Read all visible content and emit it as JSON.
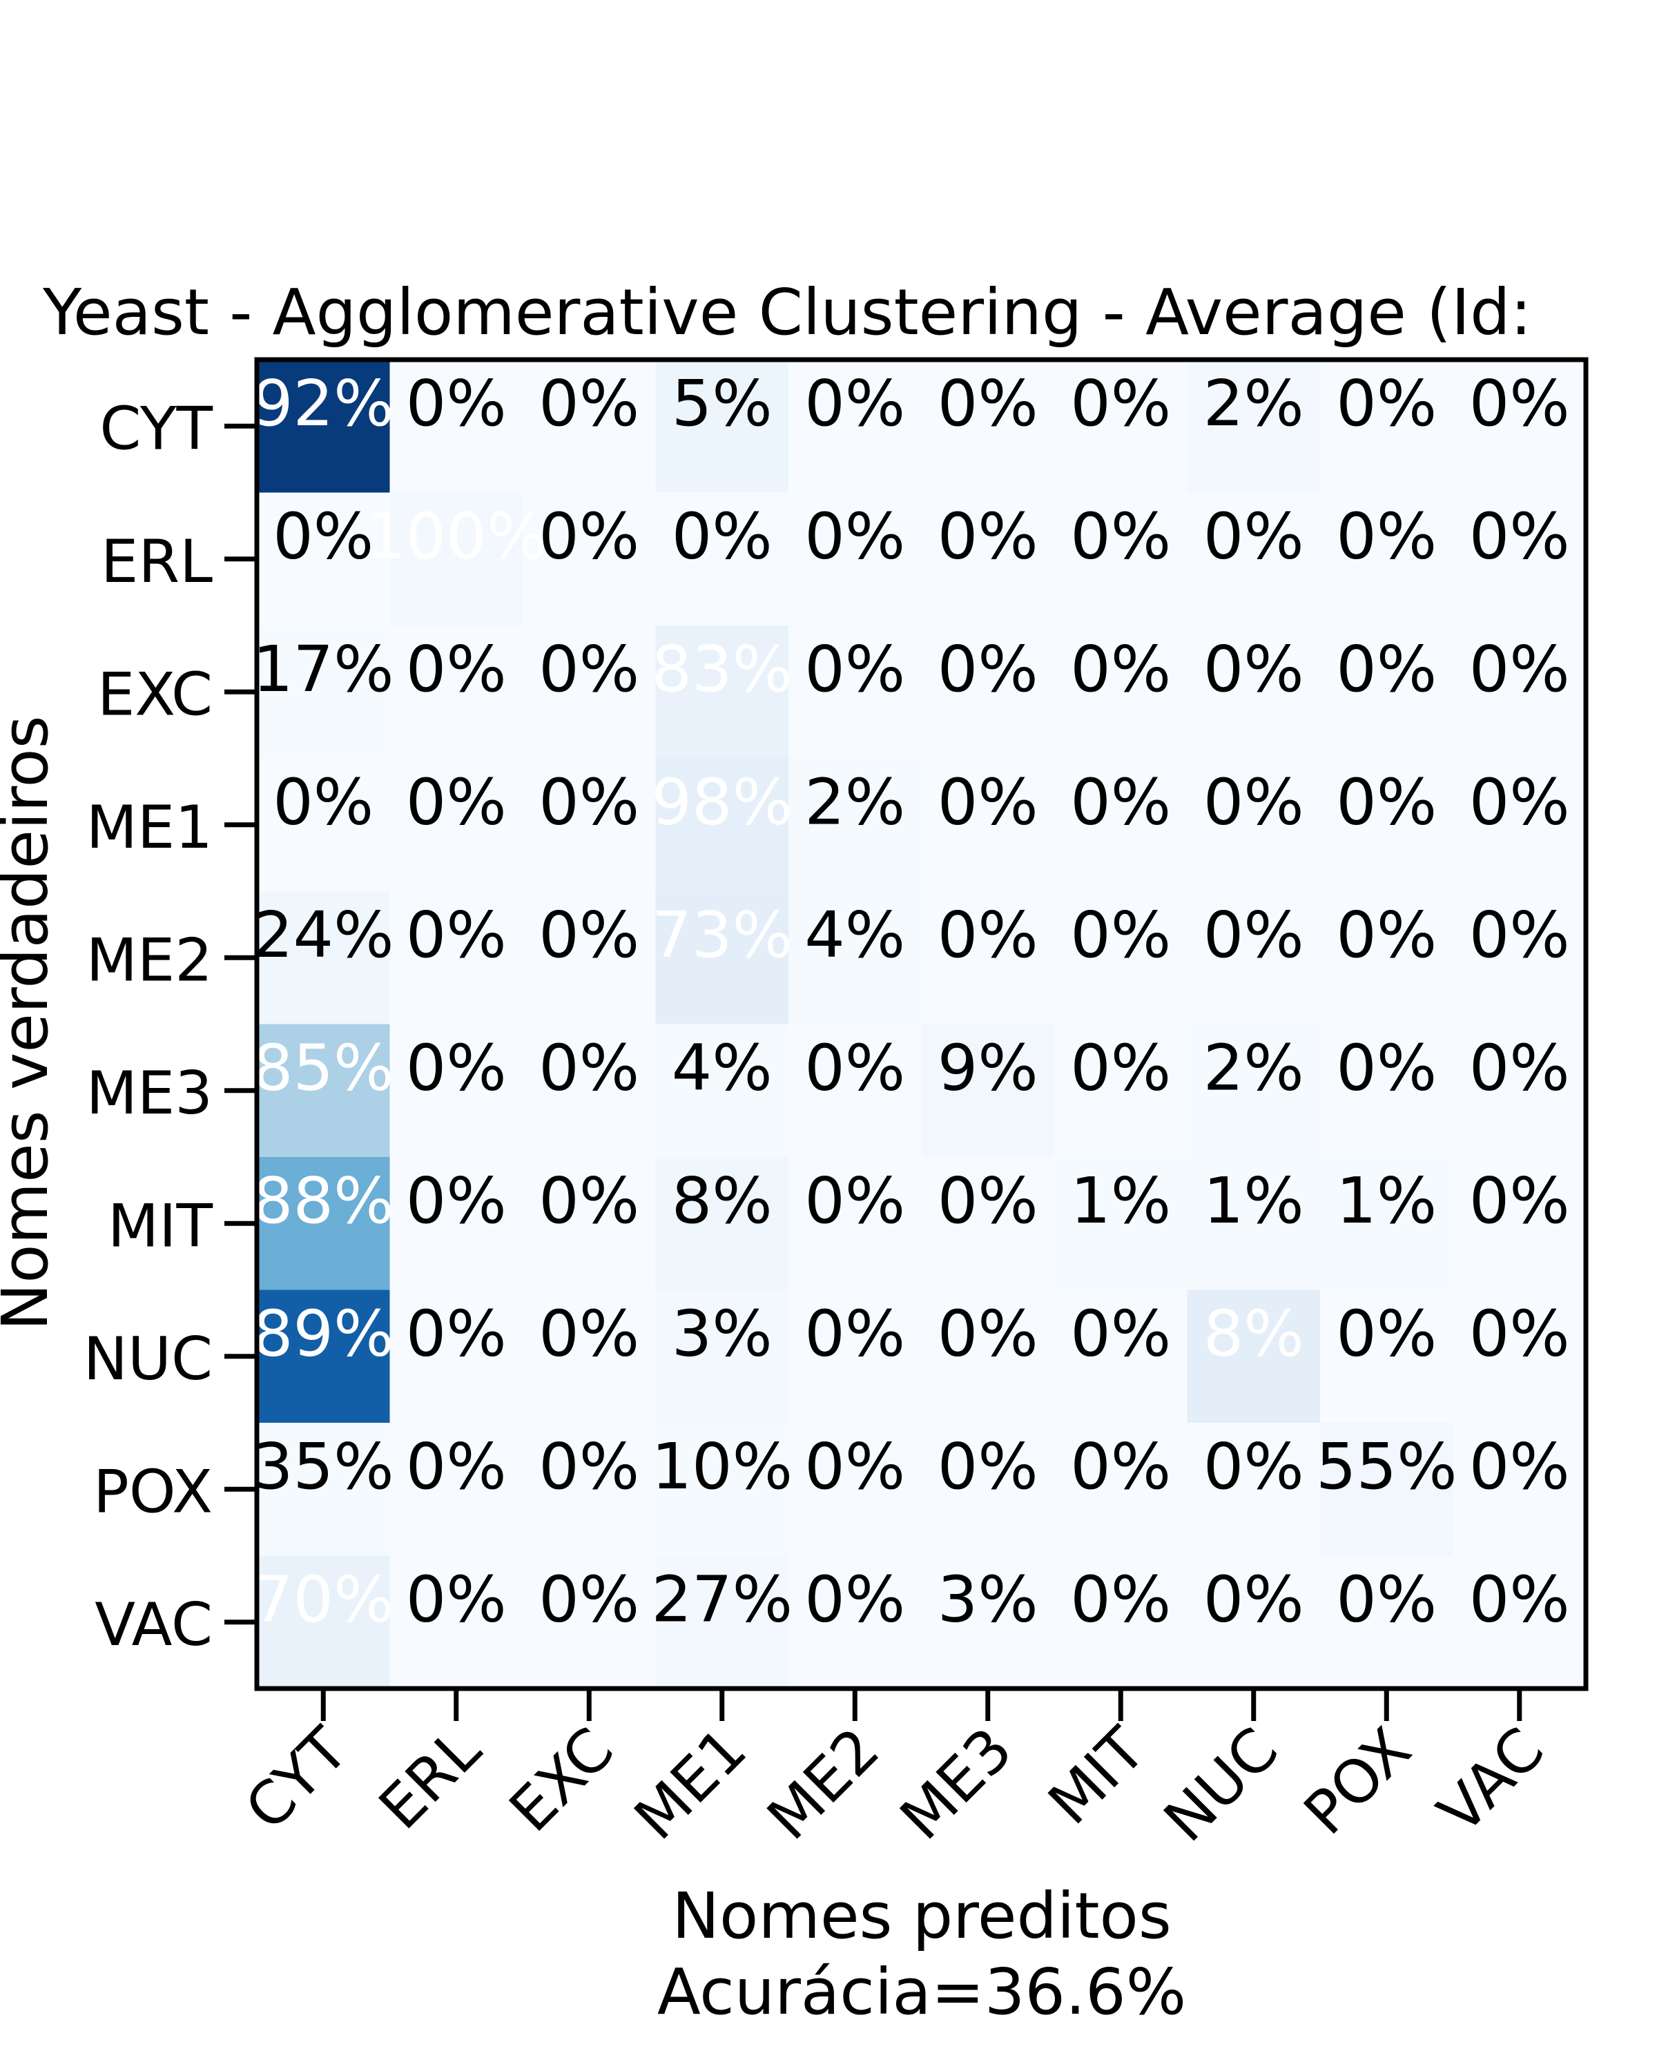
{
  "chart_data": {
    "type": "heatmap",
    "title": "Yeast - Agglomerative Clustering - Average (Id:",
    "xlabel": "Nomes preditos",
    "xlabel_note": "Acurácia=36.6%",
    "ylabel": "Nomes verdadeiros",
    "x_categories": [
      "CYT",
      "ERL",
      "EXC",
      "ME1",
      "ME2",
      "ME3",
      "MIT",
      "NUC",
      "POX",
      "VAC"
    ],
    "y_categories": [
      "CYT",
      "ERL",
      "EXC",
      "ME1",
      "ME2",
      "ME3",
      "MIT",
      "NUC",
      "POX",
      "VAC"
    ],
    "cell_labels": [
      [
        "92%",
        "0%",
        "0%",
        "5%",
        "0%",
        "0%",
        "0%",
        "2%",
        "0%",
        "0%"
      ],
      [
        "0%",
        "100%",
        "0%",
        "0%",
        "0%",
        "0%",
        "0%",
        "0%",
        "0%",
        "0%"
      ],
      [
        "17%",
        "0%",
        "0%",
        "83%",
        "0%",
        "0%",
        "0%",
        "0%",
        "0%",
        "0%"
      ],
      [
        "0%",
        "0%",
        "0%",
        "98%",
        "2%",
        "0%",
        "0%",
        "0%",
        "0%",
        "0%"
      ],
      [
        "24%",
        "0%",
        "0%",
        "73%",
        "4%",
        "0%",
        "0%",
        "0%",
        "0%",
        "0%"
      ],
      [
        "85%",
        "0%",
        "0%",
        "4%",
        "0%",
        "9%",
        "0%",
        "2%",
        "0%",
        "0%"
      ],
      [
        "88%",
        "0%",
        "0%",
        "8%",
        "0%",
        "0%",
        "1%",
        "1%",
        "1%",
        "0%"
      ],
      [
        "89%",
        "0%",
        "0%",
        "3%",
        "0%",
        "0%",
        "0%",
        "8%",
        "0%",
        "0%"
      ],
      [
        "35%",
        "0%",
        "0%",
        "10%",
        "0%",
        "0%",
        "0%",
        "0%",
        "55%",
        "0%"
      ],
      [
        "70%",
        "0%",
        "0%",
        "27%",
        "0%",
        "3%",
        "0%",
        "0%",
        "0%",
        "0%"
      ]
    ],
    "cell_intensity": [
      [
        0.96,
        0,
        0,
        0.05,
        0,
        0,
        0,
        0.02,
        0,
        0
      ],
      [
        0,
        0.02,
        0,
        0,
        0,
        0,
        0,
        0,
        0,
        0
      ],
      [
        0.01,
        0,
        0,
        0.07,
        0,
        0,
        0,
        0,
        0,
        0
      ],
      [
        0,
        0,
        0,
        0.09,
        0.01,
        0,
        0,
        0,
        0,
        0
      ],
      [
        0.04,
        0,
        0,
        0.1,
        0.01,
        0,
        0,
        0,
        0,
        0
      ],
      [
        0.33,
        0,
        0,
        0.01,
        0,
        0.03,
        0,
        0.01,
        0,
        0
      ],
      [
        0.5,
        0,
        0,
        0.04,
        0,
        0,
        0.01,
        0.01,
        0.01,
        0
      ],
      [
        0.82,
        0,
        0,
        0.02,
        0,
        0,
        0,
        0.1,
        0,
        0
      ],
      [
        0.01,
        0,
        0,
        0.01,
        0,
        0,
        0,
        0,
        0.03,
        0
      ],
      [
        0.07,
        0,
        0,
        0.02,
        0,
        0,
        0,
        0,
        0,
        0
      ]
    ],
    "colormap": "Blues",
    "text_color_light": "#ffffff",
    "text_color_dark": "#000000"
  }
}
